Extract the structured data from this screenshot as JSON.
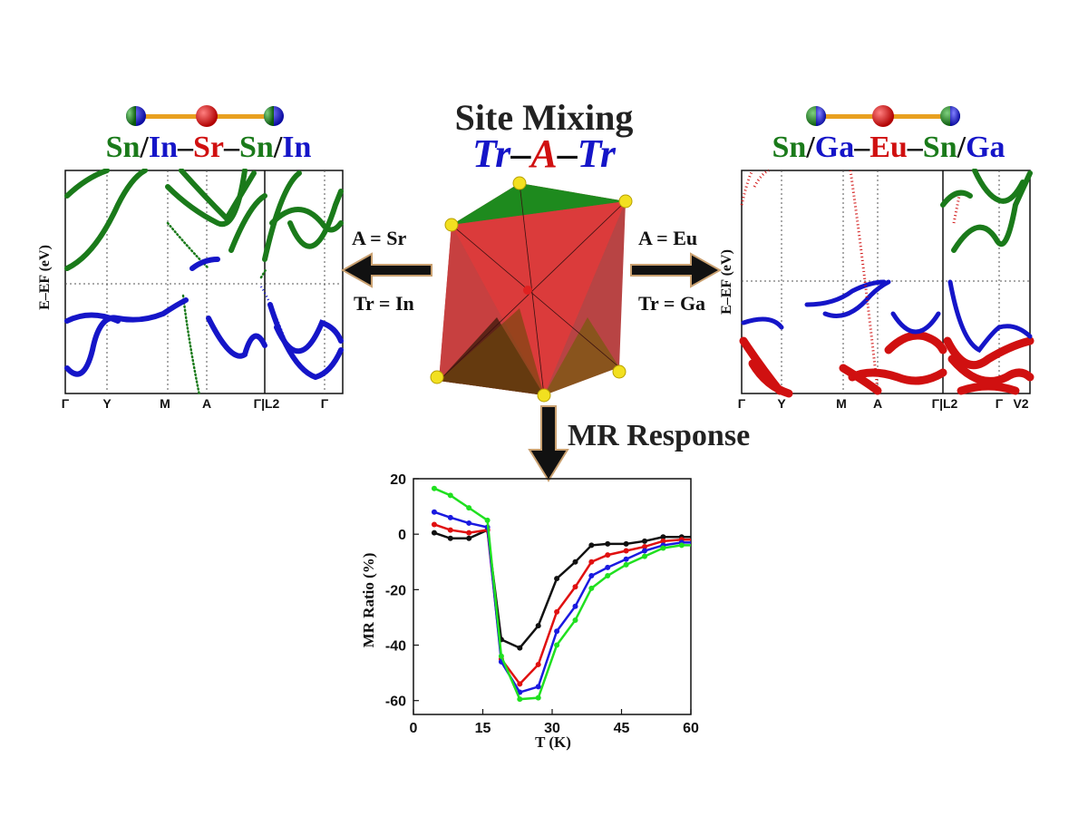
{
  "title": {
    "line1": "Site Mixing",
    "formula": [
      "Tr",
      "–",
      "A",
      "–",
      "Tr"
    ]
  },
  "colors": {
    "green": "#1a7a1a",
    "blue": "#1515c8",
    "red": "#d01010",
    "orange": "#e8a020",
    "black": "#111111"
  },
  "left_panel": {
    "chain": [
      {
        "text": "Sn",
        "color": "green"
      },
      {
        "text": "/",
        "color": "black"
      },
      {
        "text": "In",
        "color": "blue"
      },
      {
        "text": "–",
        "color": "black"
      },
      {
        "text": "Sr",
        "color": "red"
      },
      {
        "text": "–",
        "color": "black"
      },
      {
        "text": "Sn",
        "color": "green"
      },
      {
        "text": "/",
        "color": "black"
      },
      {
        "text": "In",
        "color": "blue"
      }
    ],
    "ylabel": "E–EF (eV)",
    "kpoints": [
      "Γ",
      "Y",
      "M",
      "A",
      "Γ|L2",
      "Γ"
    ],
    "conditions": {
      "A": "A = Sr",
      "Tr": "Tr = In"
    }
  },
  "right_panel": {
    "chain": [
      {
        "text": "Sn",
        "color": "green"
      },
      {
        "text": "/",
        "color": "black"
      },
      {
        "text": "Ga",
        "color": "blue"
      },
      {
        "text": "–",
        "color": "black"
      },
      {
        "text": "Eu",
        "color": "red"
      },
      {
        "text": "–",
        "color": "black"
      },
      {
        "text": "Sn",
        "color": "green"
      },
      {
        "text": "/",
        "color": "black"
      },
      {
        "text": "Ga",
        "color": "blue"
      }
    ],
    "ylabel": "E–EF (eV)",
    "kpoints": [
      "Γ",
      "Y",
      "M",
      "A",
      "Γ|L2",
      "Γ",
      "V2"
    ],
    "conditions": {
      "A": "A = Eu",
      "Tr": "Tr = Ga"
    }
  },
  "mr_response_label": "MR Response",
  "chart_data": {
    "type": "line",
    "xlabel": "T (K)",
    "ylabel": "MR Ratio (%)",
    "xlim": [
      0,
      60
    ],
    "ylim": [
      -65,
      20
    ],
    "xticks": [
      0,
      15,
      30,
      45,
      60
    ],
    "yticks": [
      20,
      0,
      -20,
      -40,
      -60
    ],
    "x": [
      4.5,
      8,
      12,
      16,
      19,
      23,
      27,
      31,
      35,
      38.5,
      42,
      46,
      50,
      54,
      58,
      61
    ],
    "series": [
      {
        "color": "#111111",
        "values": [
          0.5,
          -1.5,
          -1.5,
          1.5,
          -38,
          -41,
          -33,
          -16,
          -10,
          -4,
          -3.5,
          -3.5,
          -2.5,
          -1,
          -1,
          -1
        ]
      },
      {
        "color": "#e01010",
        "values": [
          3.5,
          1.5,
          0.5,
          1.5,
          -45,
          -54,
          -47,
          -28,
          -19,
          -10,
          -7.5,
          -6,
          -4.5,
          -2.5,
          -2,
          -2
        ]
      },
      {
        "color": "#1a1ae0",
        "values": [
          8,
          6,
          4,
          2.5,
          -46,
          -57,
          -55,
          -35,
          -26,
          -15,
          -12,
          -9,
          -6,
          -4,
          -3,
          -3
        ]
      },
      {
        "color": "#20e020",
        "values": [
          16.5,
          14,
          9.5,
          5,
          -44,
          -59.5,
          -59,
          -40,
          -31,
          -19.5,
          -15,
          -11,
          -8,
          -5,
          -4,
          -4
        ]
      }
    ]
  }
}
